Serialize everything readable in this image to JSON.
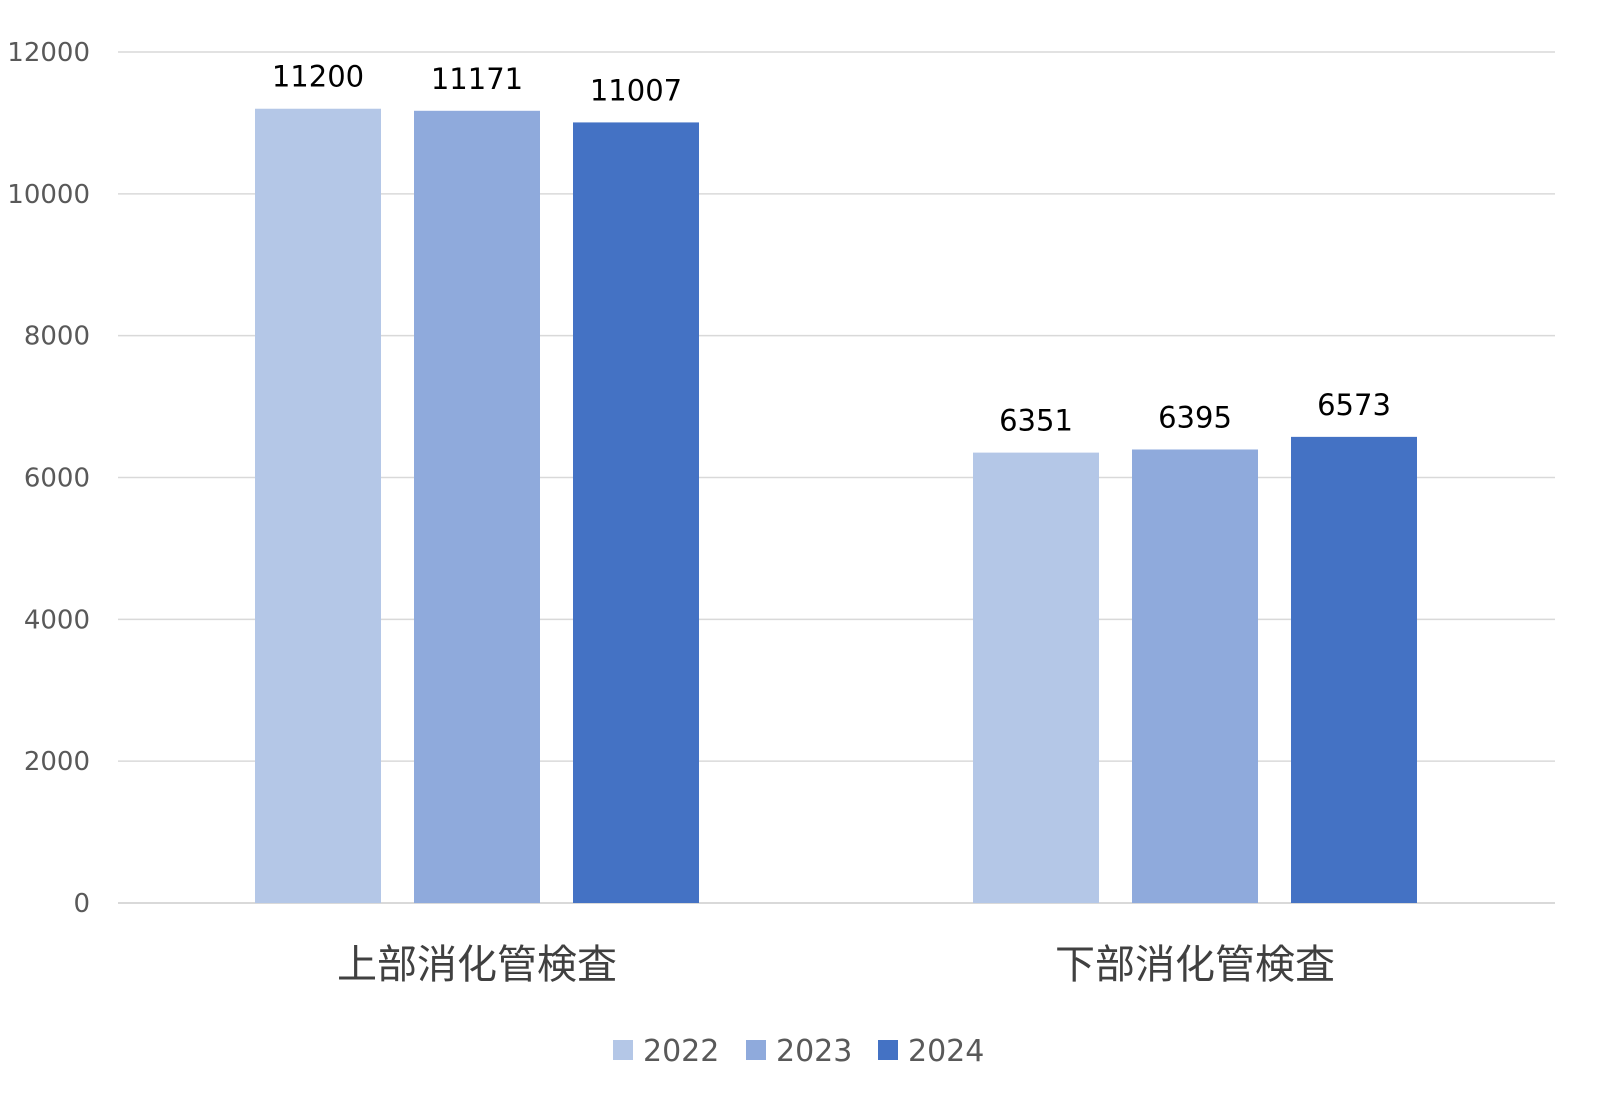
{
  "chart_data": {
    "type": "bar",
    "title": "",
    "xlabel": "",
    "ylabel": "",
    "categories": [
      "上部消化管検査",
      "下部消化管検査"
    ],
    "series": [
      {
        "name": "2022",
        "values": [
          11200,
          6351
        ],
        "color": "#B4C7E7"
      },
      {
        "name": "2023",
        "values": [
          11171,
          6395
        ],
        "color": "#8FAADC"
      },
      {
        "name": "2024",
        "values": [
          11007,
          6573
        ],
        "color": "#4472C4"
      }
    ],
    "ylim": [
      0,
      12000
    ],
    "yticks": [
      0,
      2000,
      4000,
      6000,
      8000,
      10000,
      12000
    ],
    "grid": true,
    "legend": "bottom-center",
    "data_labels": true,
    "colors": {
      "grid": "#D9D9D9",
      "axis": "#D9D9D9"
    }
  }
}
